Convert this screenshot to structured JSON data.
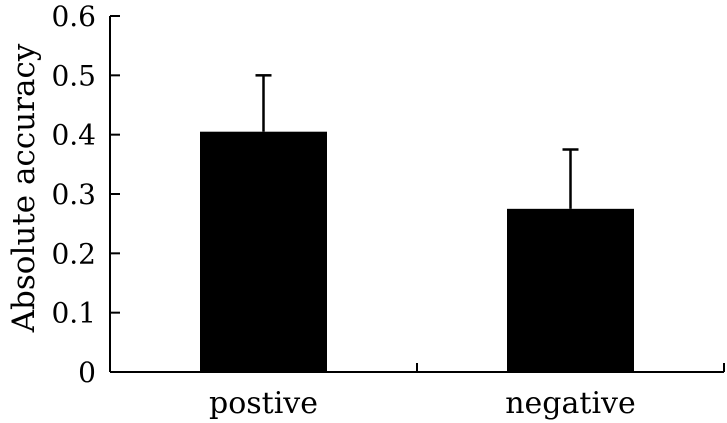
{
  "chart_data": {
    "type": "bar",
    "title": "",
    "xlabel": "",
    "ylabel": "Absolute accuracy",
    "ylim": [
      0,
      0.6
    ],
    "yticks": [
      0,
      0.1,
      0.2,
      0.3,
      0.4,
      0.5,
      0.6
    ],
    "ytick_labels": [
      "0",
      "0.1",
      "0.2",
      "0.3",
      "0.4",
      "0.5",
      "0.6"
    ],
    "categories": [
      "postive",
      "negative"
    ],
    "values": [
      0.405,
      0.275
    ],
    "error_upper": [
      0.5,
      0.375
    ],
    "bar_color": "#000000",
    "grid": false
  }
}
